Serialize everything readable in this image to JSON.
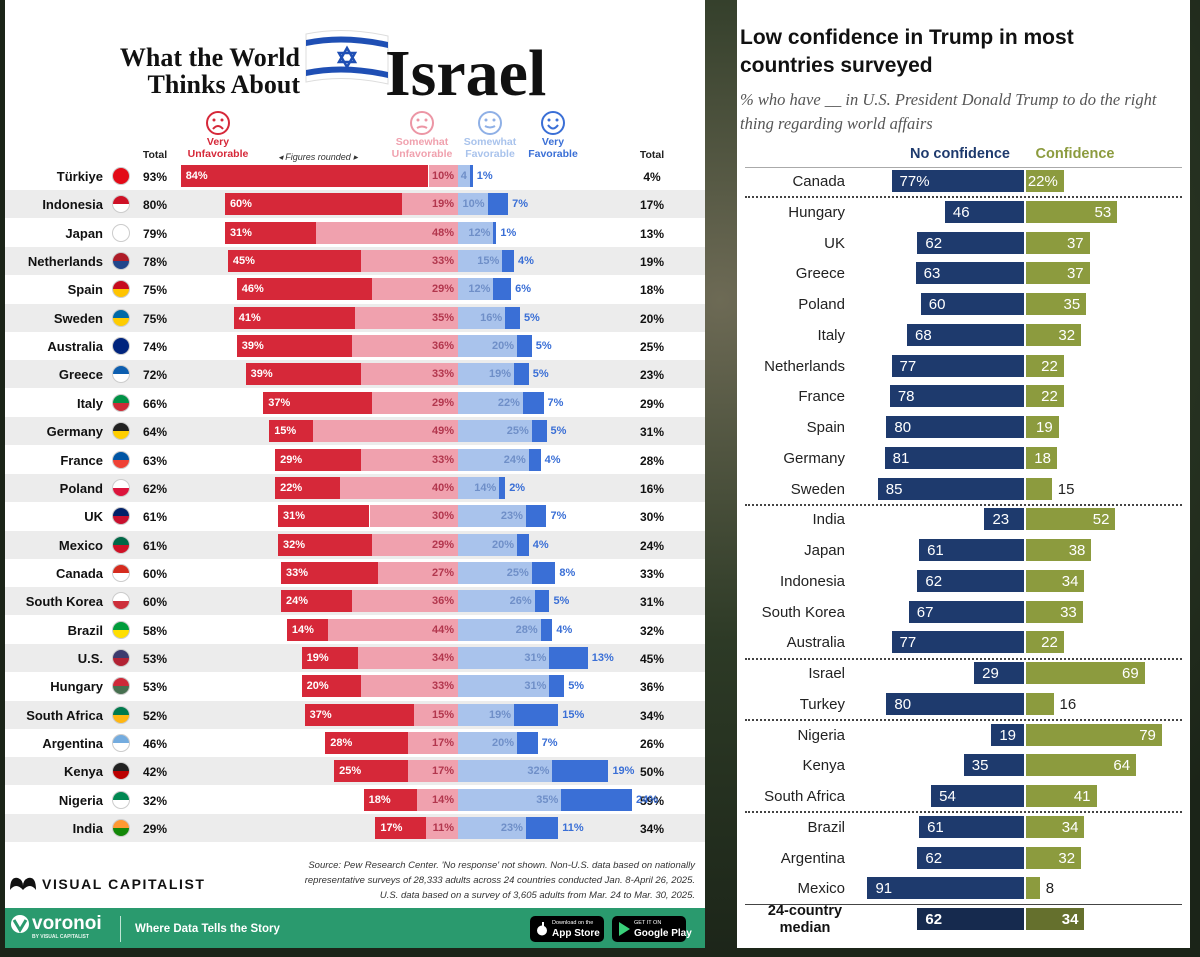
{
  "chart_data": [
    {
      "type": "stacked",
      "title": "What the World Thinks About",
      "title_highlight": "Israel",
      "note": "Figures rounded",
      "categories": [
        "Türkiye",
        "Indonesia",
        "Japan",
        "Netherlands",
        "Spain",
        "Sweden",
        "Australia",
        "Greece",
        "Italy",
        "Germany",
        "France",
        "Poland",
        "UK",
        "Mexico",
        "Canada",
        "South Korea",
        "Brazil",
        "U.S.",
        "Hungary",
        "South Africa",
        "Argentina",
        "Kenya",
        "Nigeria",
        "India"
      ],
      "series": [
        {
          "name": "Very Unfavorable",
          "color": "#d62839",
          "values": [
            84,
            60,
            31,
            45,
            46,
            41,
            39,
            39,
            37,
            15,
            29,
            22,
            31,
            32,
            33,
            24,
            14,
            19,
            20,
            37,
            28,
            25,
            18,
            17
          ],
          "value_labels": [
            "84%",
            "60%",
            "31%",
            "45%",
            "46%",
            "41%",
            "39%",
            "39%",
            "37%",
            "15%",
            "29%",
            "22%",
            "31%",
            "32%",
            "33%",
            "24%",
            "14%",
            "19%",
            "20%",
            "37%",
            "28%",
            "25%",
            "18%",
            "17%"
          ]
        },
        {
          "name": "Somewhat Unfavorable",
          "color": "#f0a1ae",
          "values": [
            10,
            19,
            48,
            33,
            29,
            35,
            36,
            33,
            29,
            49,
            33,
            40,
            30,
            29,
            27,
            36,
            44,
            34,
            33,
            15,
            17,
            17,
            14,
            11
          ],
          "value_labels": [
            "10%",
            "19%",
            "48%",
            "33%",
            "29%",
            "35%",
            "36%",
            "33%",
            "29%",
            "49%",
            "33%",
            "40%",
            "30%",
            "29%",
            "27%",
            "36%",
            "44%",
            "34%",
            "33%",
            "15%",
            "17%",
            "17%",
            "14%",
            "11%"
          ]
        },
        {
          "name": "Somewhat Favorable",
          "color": "#a9c3ec",
          "values": [
            4,
            10,
            12,
            15,
            12,
            16,
            20,
            19,
            22,
            25,
            24,
            14,
            23,
            20,
            25,
            26,
            28,
            31,
            31,
            19,
            20,
            32,
            35,
            23
          ],
          "value_labels": [
            "4",
            "10%",
            "12%",
            "15%",
            "12%",
            "16%",
            "20%",
            "19%",
            "22%",
            "25%",
            "24%",
            "14%",
            "23%",
            "20%",
            "25%",
            "26%",
            "28%",
            "31%",
            "31%",
            "19%",
            "20%",
            "32%",
            "35%",
            "23%"
          ]
        },
        {
          "name": "Very Favorable",
          "color": "#3a6fd6",
          "values": [
            1,
            7,
            1,
            4,
            6,
            5,
            5,
            5,
            7,
            5,
            4,
            2,
            7,
            4,
            8,
            5,
            4,
            13,
            5,
            15,
            7,
            19,
            24,
            11
          ],
          "value_labels": [
            "1%",
            "7%",
            "1%",
            "4%",
            "6%",
            "5%",
            "5%",
            "5%",
            "7%",
            "5%",
            "4%",
            "2%",
            "7%",
            "4%",
            "8%",
            "5%",
            "4%",
            "13%",
            "5%",
            "15%",
            "7%",
            "19%",
            "24%",
            "11%"
          ]
        }
      ],
      "totals": [
        {
          "name": "Total",
          "values": [
            93,
            80,
            79,
            78,
            75,
            75,
            74,
            72,
            66,
            64,
            63,
            62,
            61,
            61,
            60,
            60,
            58,
            53,
            53,
            52,
            46,
            42,
            32,
            29
          ],
          "value_labels": [
            "93%",
            "80%",
            "79%",
            "78%",
            "75%",
            "75%",
            "74%",
            "72%",
            "66%",
            "64%",
            "63%",
            "62%",
            "61%",
            "61%",
            "60%",
            "60%",
            "58%",
            "53%",
            "53%",
            "52%",
            "46%",
            "42%",
            "32%",
            "29%"
          ]
        },
        {
          "name": "Total",
          "values": [
            4,
            17,
            13,
            19,
            18,
            20,
            25,
            23,
            29,
            31,
            28,
            16,
            30,
            24,
            33,
            31,
            32,
            45,
            36,
            34,
            26,
            50,
            59,
            34
          ],
          "value_labels": [
            "4%",
            "17%",
            "13%",
            "19%",
            "18%",
            "20%",
            "25%",
            "23%",
            "29%",
            "31%",
            "28%",
            "16%",
            "30%",
            "24%",
            "33%",
            "31%",
            "32%",
            "45%",
            "36%",
            "34%",
            "26%",
            "50%",
            "59%",
            "34%"
          ]
        }
      ],
      "source": [
        "Source: Pew Research Center. 'No response' not shown. Non-U.S. data based on nationally",
        "representative surveys of 28,333 adults across 24 countries conducted Jan. 8-April 26, 2025.",
        "U.S. data based on a survey of 3,605 adults from Mar. 24 to Mar. 30, 2025."
      ],
      "brand": "VISUAL CAPITALIST",
      "footer": {
        "logo": "voronoi",
        "logo_sub": "BY VISUAL CAPITALIST",
        "tagline": "Where Data Tells the Story",
        "app_store": [
          "Download on the",
          "App Store"
        ],
        "google_play": [
          "GET IT ON",
          "Google Play"
        ]
      }
    },
    {
      "type": "diverging",
      "title": "Low confidence in Trump in most countries surveyed",
      "subtitle": "% who have __ in U.S. President Donald Trump to do the right thing regarding world affairs",
      "categories": [
        [
          "Canada"
        ],
        [
          "Hungary",
          "UK",
          "Greece",
          "Poland",
          "Italy",
          "Netherlands",
          "France",
          "Spain",
          "Germany",
          "Sweden"
        ],
        [
          "India",
          "Japan",
          "Indonesia",
          "South Korea",
          "Australia"
        ],
        [
          "Israel",
          "Turkey"
        ],
        [
          "Nigeria",
          "Kenya",
          "South Africa"
        ],
        [
          "Brazil",
          "Argentina",
          "Mexico"
        ],
        [
          "24-country median"
        ]
      ],
      "series": [
        {
          "name": "No confidence",
          "color": "#1e3a6d",
          "values": [
            [
              77
            ],
            [
              46,
              62,
              63,
              60,
              68,
              77,
              78,
              80,
              81,
              85
            ],
            [
              23,
              61,
              62,
              67,
              77
            ],
            [
              29,
              80
            ],
            [
              19,
              35,
              54
            ],
            [
              61,
              62,
              91
            ],
            [
              62
            ]
          ],
          "value_labels": [
            [
              "77%"
            ],
            [
              "46",
              "62",
              "63",
              "60",
              "68",
              "77",
              "78",
              "80",
              "81",
              "85"
            ],
            [
              "23",
              "61",
              "62",
              "67",
              "77"
            ],
            [
              "29",
              "80"
            ],
            [
              "19",
              "35",
              "54"
            ],
            [
              "61",
              "62",
              "91"
            ],
            [
              "62"
            ]
          ]
        },
        {
          "name": "Confidence",
          "color": "#8c9b3e",
          "values": [
            [
              22
            ],
            [
              53,
              37,
              37,
              35,
              32,
              22,
              22,
              19,
              18,
              15
            ],
            [
              52,
              38,
              34,
              33,
              22
            ],
            [
              69,
              16
            ],
            [
              79,
              64,
              41
            ],
            [
              34,
              32,
              8
            ],
            [
              34
            ]
          ],
          "value_labels": [
            [
              "22%"
            ],
            [
              "53",
              "37",
              "37",
              "35",
              "32",
              "22",
              "22",
              "19",
              "18",
              "15"
            ],
            [
              "52",
              "38",
              "34",
              "33",
              "22"
            ],
            [
              "69",
              "16"
            ],
            [
              "79",
              "64",
              "41"
            ],
            [
              "34",
              "32",
              "8"
            ],
            [
              "34"
            ]
          ]
        }
      ]
    }
  ]
}
